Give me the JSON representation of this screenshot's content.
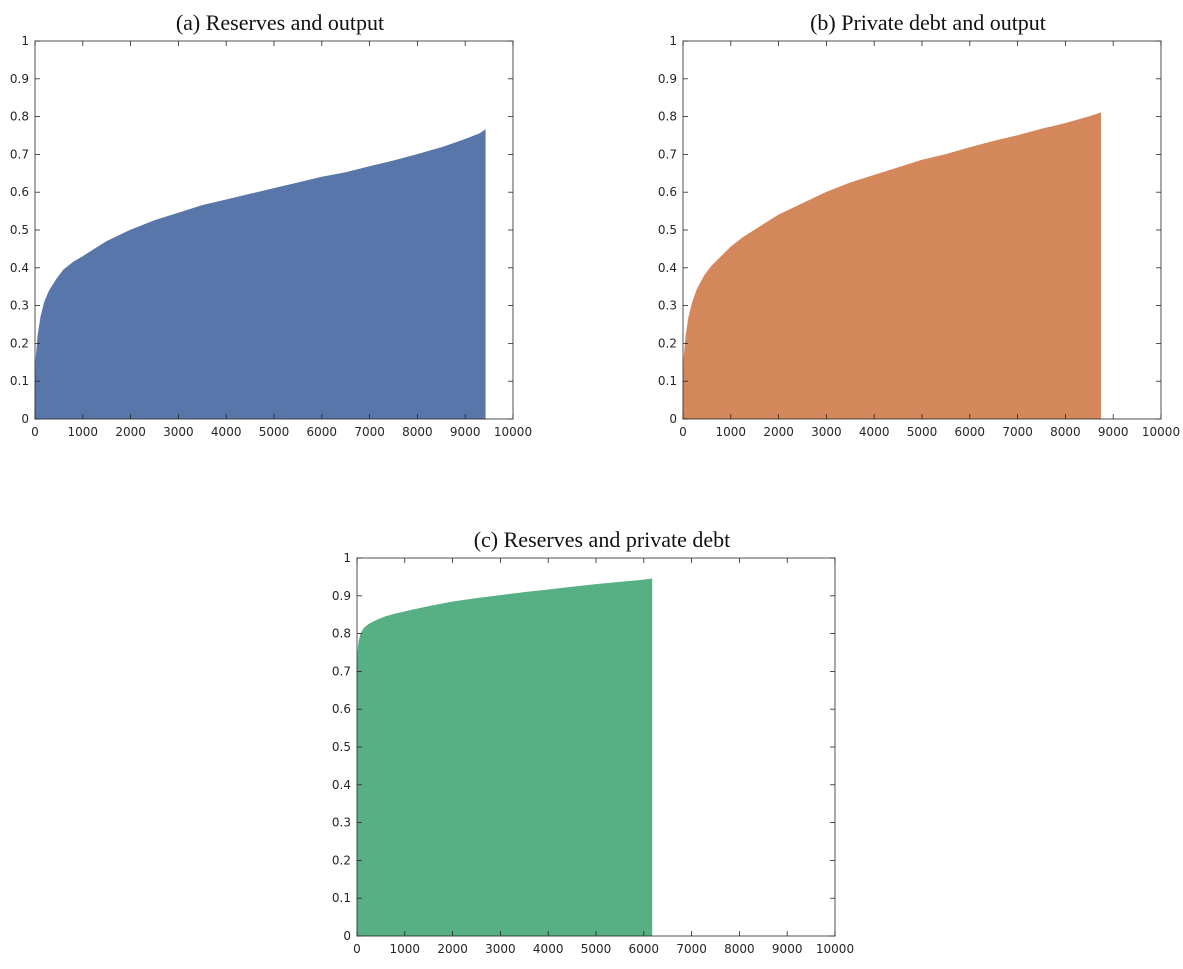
{
  "chart_data": [
    {
      "type": "area",
      "title": "(a) Reserves and output",
      "xlabel": "",
      "ylabel": "",
      "xlim": [
        0,
        10000
      ],
      "ylim": [
        0,
        1
      ],
      "xticks": [
        0,
        1000,
        2000,
        3000,
        4000,
        5000,
        6000,
        7000,
        8000,
        9000,
        10000
      ],
      "yticks": [
        0,
        0.1,
        0.2,
        0.3,
        0.4,
        0.5,
        0.6,
        0.7,
        0.8,
        0.9,
        1
      ],
      "xtick_labels": [
        "0",
        "1000",
        "2000",
        "3000",
        "4000",
        "5000",
        "6000",
        "7000",
        "8000",
        "9000",
        "10000"
      ],
      "ytick_labels": [
        "0",
        "0.1",
        "0.2",
        "0.3",
        "0.4",
        "0.5",
        "0.6",
        "0.7",
        "0.8",
        "0.9",
        "1"
      ],
      "color": "#5876a9",
      "grid": false,
      "series": [
        {
          "x": [
            0,
            20,
            60,
            120,
            200,
            300,
            450,
            600,
            800,
            1000,
            1250,
            1500,
            2000,
            2500,
            3000,
            3500,
            4000,
            4500,
            5000,
            5500,
            6000,
            6500,
            7000,
            7500,
            8000,
            8500,
            9000,
            9300,
            9420
          ],
          "y": [
            0.08,
            0.16,
            0.22,
            0.27,
            0.31,
            0.34,
            0.37,
            0.395,
            0.415,
            0.43,
            0.45,
            0.47,
            0.5,
            0.525,
            0.545,
            0.565,
            0.58,
            0.595,
            0.61,
            0.625,
            0.64,
            0.652,
            0.668,
            0.683,
            0.7,
            0.718,
            0.74,
            0.755,
            0.765
          ]
        }
      ]
    },
    {
      "type": "area",
      "title": "(b) Private debt and output",
      "xlabel": "",
      "ylabel": "",
      "xlim": [
        0,
        10000
      ],
      "ylim": [
        0,
        1
      ],
      "xticks": [
        0,
        1000,
        2000,
        3000,
        4000,
        5000,
        6000,
        7000,
        8000,
        9000,
        10000
      ],
      "yticks": [
        0,
        0.1,
        0.2,
        0.3,
        0.4,
        0.5,
        0.6,
        0.7,
        0.8,
        0.9,
        1
      ],
      "xtick_labels": [
        "0",
        "1000",
        "2000",
        "3000",
        "4000",
        "5000",
        "6000",
        "7000",
        "8000",
        "9000",
        "10000"
      ],
      "ytick_labels": [
        "0",
        "0.1",
        "0.2",
        "0.3",
        "0.4",
        "0.5",
        "0.6",
        "0.7",
        "0.8",
        "0.9",
        "1"
      ],
      "color": "#d3875b",
      "grid": false,
      "series": [
        {
          "x": [
            0,
            20,
            60,
            120,
            200,
            300,
            450,
            600,
            800,
            1000,
            1250,
            1500,
            2000,
            2500,
            3000,
            3500,
            4000,
            4500,
            5000,
            5500,
            6000,
            6500,
            7000,
            7500,
            8000,
            8500,
            8740
          ],
          "y": [
            0.09,
            0.16,
            0.22,
            0.27,
            0.31,
            0.345,
            0.38,
            0.405,
            0.43,
            0.455,
            0.48,
            0.5,
            0.54,
            0.57,
            0.6,
            0.625,
            0.645,
            0.665,
            0.685,
            0.7,
            0.718,
            0.735,
            0.75,
            0.767,
            0.782,
            0.8,
            0.81
          ]
        }
      ]
    },
    {
      "type": "area",
      "title": "(c) Reserves and private debt",
      "xlabel": "",
      "ylabel": "",
      "xlim": [
        0,
        10000
      ],
      "ylim": [
        0,
        1
      ],
      "xticks": [
        0,
        1000,
        2000,
        3000,
        4000,
        5000,
        6000,
        7000,
        8000,
        9000,
        10000
      ],
      "yticks": [
        0,
        0.1,
        0.2,
        0.3,
        0.4,
        0.5,
        0.6,
        0.7,
        0.8,
        0.9,
        1
      ],
      "xtick_labels": [
        "0",
        "1000",
        "2000",
        "3000",
        "4000",
        "5000",
        "6000",
        "7000",
        "8000",
        "9000",
        "10000"
      ],
      "ytick_labels": [
        "0",
        "0.1",
        "0.2",
        "0.3",
        "0.4",
        "0.5",
        "0.6",
        "0.7",
        "0.8",
        "0.9",
        "1"
      ],
      "color": "#56b083",
      "grid": false,
      "series": [
        {
          "x": [
            0,
            15,
            40,
            80,
            150,
            250,
            400,
            600,
            800,
            1000,
            1500,
            2000,
            2500,
            3000,
            3500,
            4000,
            4500,
            5000,
            5500,
            6000,
            6170
          ],
          "y": [
            0.7,
            0.75,
            0.78,
            0.8,
            0.815,
            0.825,
            0.835,
            0.845,
            0.852,
            0.858,
            0.872,
            0.884,
            0.893,
            0.901,
            0.909,
            0.916,
            0.923,
            0.93,
            0.936,
            0.942,
            0.945
          ]
        }
      ]
    }
  ]
}
